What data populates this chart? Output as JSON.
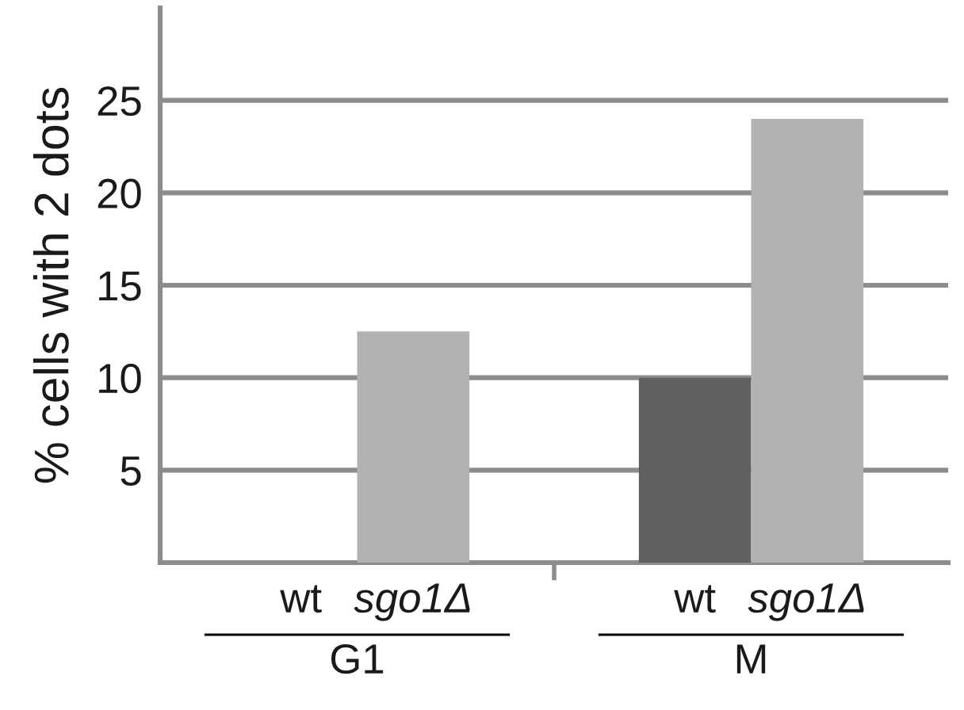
{
  "chart_data": {
    "type": "bar",
    "ylabel": "% cells with 2 dots",
    "categories": [
      "G1",
      "M"
    ],
    "series": [
      {
        "name": "wt",
        "color": "#606060",
        "values": [
          0,
          10
        ]
      },
      {
        "name": "sgo1Δ",
        "color": "#b2b2b2",
        "values": [
          12.5,
          24
        ]
      }
    ],
    "ylim": [
      0,
      30
    ],
    "yticks": [
      5,
      10,
      15,
      20,
      25
    ],
    "grid": "y",
    "legend": false
  }
}
